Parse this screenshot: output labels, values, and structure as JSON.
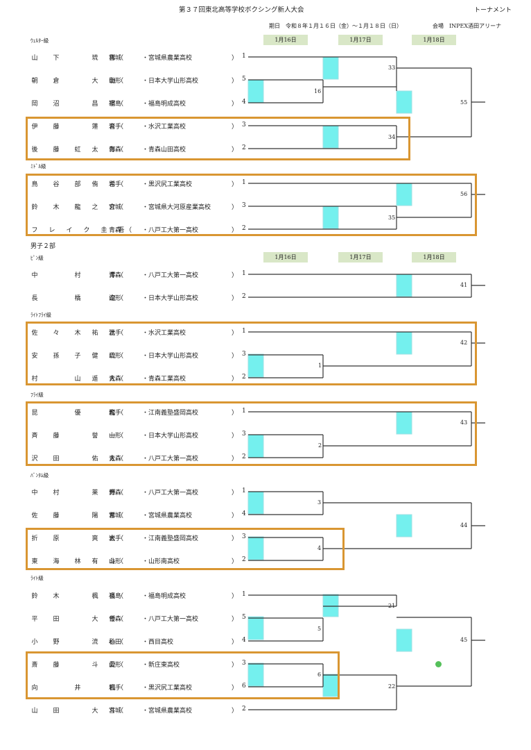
{
  "header": {
    "title": "第３７回東北高等学校ボクシング新人大会",
    "kind": "トーナメント",
    "dates": "期日　令和８年１月１６日（金）～１月１８日（日）",
    "venue": "会場　INPEX酒田アリーナ"
  },
  "day_headers": [
    "1月16日",
    "1月17日",
    "1月18日"
  ],
  "categories": {
    "welter": "ｳｪﾙﾀｰ級",
    "middle": "ﾐﾄﾞﾙ級",
    "section2": "男子２部",
    "pin": "ﾋﾟﾝ級",
    "lightfly": "ﾗｲﾄﾌﾗｲ級",
    "fly": "ﾌﾗｲ級",
    "bantam": "ﾊﾞﾝﾀﾑ級",
    "light": "ﾗｲﾄ級"
  },
  "entries": [
    {
      "name": [
        "山",
        "下",
        "",
        "琉",
        "稀"
      ],
      "pref": "宮城",
      "school": "・宮城県農業高校",
      "seed": "1"
    },
    {
      "name": [
        "朝",
        "倉",
        "",
        "大",
        "馳"
      ],
      "pref": "山形",
      "school": "・日本大学山形高校",
      "seed": "5"
    },
    {
      "name": [
        "岡",
        "沼",
        "",
        "昌",
        "宗"
      ],
      "pref": "福島",
      "school": "・福島明成高校",
      "seed": "4"
    },
    {
      "name": [
        "伊",
        "藤",
        "",
        "蓮",
        "音"
      ],
      "pref": "岩手",
      "school": "・水沢工業高校",
      "seed": "3"
    },
    {
      "name": [
        "後",
        "藤",
        "虹",
        "太",
        "郎"
      ],
      "pref": "青森",
      "school": "・青森山田高校",
      "seed": "2"
    },
    {
      "name": [
        "鳥",
        "谷",
        "部",
        "侑",
        "希"
      ],
      "pref": "岩手",
      "school": "・黒沢尻工業高校",
      "seed": "1"
    },
    {
      "name": [
        "鈴",
        "木",
        "龍",
        "之",
        "介"
      ],
      "pref": "宮城",
      "school": "・宮城県大河原産業高校",
      "seed": "3"
    },
    {
      "name": [
        "フ",
        "レ",
        "イ",
        "ク",
        "圭",
        "吾"
      ],
      "pref": "青森",
      "school": "・八戸工大第一高校",
      "seed": "2"
    },
    {
      "name": [
        "中",
        "",
        "村",
        "",
        "澪"
      ],
      "pref": "青森",
      "school": "・八戸工大第一高校",
      "seed": "1"
    },
    {
      "name": [
        "長",
        "",
        "橋",
        "",
        "遼"
      ],
      "pref": "山形",
      "school": "・日本大学山形高校",
      "seed": "2"
    },
    {
      "name": [
        "佐",
        "々",
        "木",
        "祐",
        "汰"
      ],
      "pref": "岩手",
      "school": "・水沢工業高校",
      "seed": "1"
    },
    {
      "name": [
        "安",
        "孫",
        "子",
        "健",
        "琉"
      ],
      "pref": "山形",
      "school": "・日本大学山形高校",
      "seed": "3"
    },
    {
      "name": [
        "村",
        "",
        "山",
        "遥",
        "大"
      ],
      "pref": "青森",
      "school": "・青森工業高校",
      "seed": "2"
    },
    {
      "name": [
        "昆",
        "",
        "優",
        "",
        "龍"
      ],
      "pref": "岩手",
      "school": "・江南義塾盛岡高校",
      "seed": "1"
    },
    {
      "name": [
        "斉",
        "藤",
        "",
        "誉",
        "一"
      ],
      "pref": "山形",
      "school": "・日本大学山形高校",
      "seed": "3"
    },
    {
      "name": [
        "沢",
        "田",
        "",
        "佑",
        "太"
      ],
      "pref": "青森",
      "school": "・八戸工大第一高校",
      "seed": "2"
    },
    {
      "name": [
        "中",
        "村",
        "",
        "莱",
        "輝"
      ],
      "pref": "青森",
      "school": "・八戸工大第一高校",
      "seed": "1"
    },
    {
      "name": [
        "佐",
        "藤",
        "",
        "陽",
        "希"
      ],
      "pref": "宮城",
      "school": "・宮城県農業高校",
      "seed": "4"
    },
    {
      "name": [
        "折",
        "原",
        "",
        "爽",
        "太"
      ],
      "pref": "岩手",
      "school": "・江南義塾盛岡高校",
      "seed": "3"
    },
    {
      "name": [
        "東",
        "海",
        "林",
        "有",
        "斗"
      ],
      "pref": "山形",
      "school": "・山形南高校",
      "seed": "2"
    },
    {
      "name": [
        "鈴",
        "木",
        "",
        "楓",
        "良"
      ],
      "pref": "福島",
      "school": "・福島明成高校",
      "seed": "1"
    },
    {
      "name": [
        "平",
        "田",
        "",
        "大",
        "倭"
      ],
      "pref": "青森",
      "school": "・八戸工大第一高校",
      "seed": "5"
    },
    {
      "name": [
        "小",
        "野",
        "",
        "流",
        "心"
      ],
      "pref": "秋田",
      "school": "・西目高校",
      "seed": "4"
    },
    {
      "name": [
        "斎",
        "藤",
        "",
        "斗",
        "愛"
      ],
      "pref": "山形",
      "school": "・新庄東高校",
      "seed": "3"
    },
    {
      "name": [
        "向",
        "",
        "井",
        "",
        "楓"
      ],
      "pref": "岩手",
      "school": "・黒沢尻工業高校",
      "seed": "6"
    },
    {
      "name": [
        "山",
        "田",
        "",
        "大",
        "斗"
      ],
      "pref": "宮城",
      "school": "・宮城県農業高校",
      "seed": "2"
    }
  ],
  "match_numbers": [
    "33",
    "16",
    "55",
    "34",
    "56",
    "35",
    "41",
    "42",
    "1",
    "43",
    "2",
    "3",
    "44",
    "4",
    "21",
    "5",
    "45",
    "6",
    "22"
  ],
  "colors": {
    "highlight": "#d99632",
    "marker": "#74f0ee",
    "day_header_bg": "#d9e7c7",
    "dot": "#55c05a"
  }
}
